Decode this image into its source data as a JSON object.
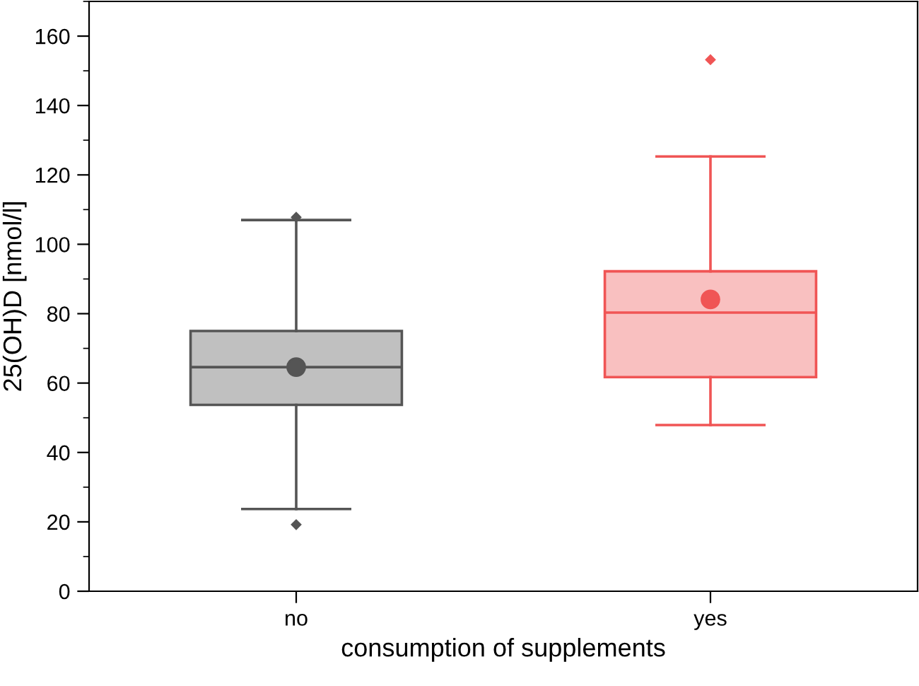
{
  "chart_data": {
    "type": "box",
    "xlabel": "consumption of supplements",
    "ylabel": "25(OH)D [nmol/l]",
    "categories": [
      "no",
      "yes"
    ],
    "series": [
      {
        "color": "#555555",
        "boxes": [
          {
            "low": 23.7,
            "q1": 53.7,
            "median": 64.6,
            "q3": 75.0,
            "high": 107,
            "mean": 64.6,
            "outliers": [
              107.8,
              19.2
            ]
          },
          null
        ]
      },
      {
        "color": "#f05555",
        "boxes": [
          null,
          {
            "low": 47.9,
            "q1": 61.7,
            "median": 80.3,
            "q3": 92.2,
            "high": 125.3,
            "mean": 84.1,
            "outliers": [
              153.2
            ]
          }
        ]
      }
    ],
    "ylim": [
      0,
      170
    ],
    "yticks": [
      0,
      20,
      40,
      60,
      80,
      100,
      120,
      140,
      160
    ],
    "grid": false,
    "legend": false
  }
}
